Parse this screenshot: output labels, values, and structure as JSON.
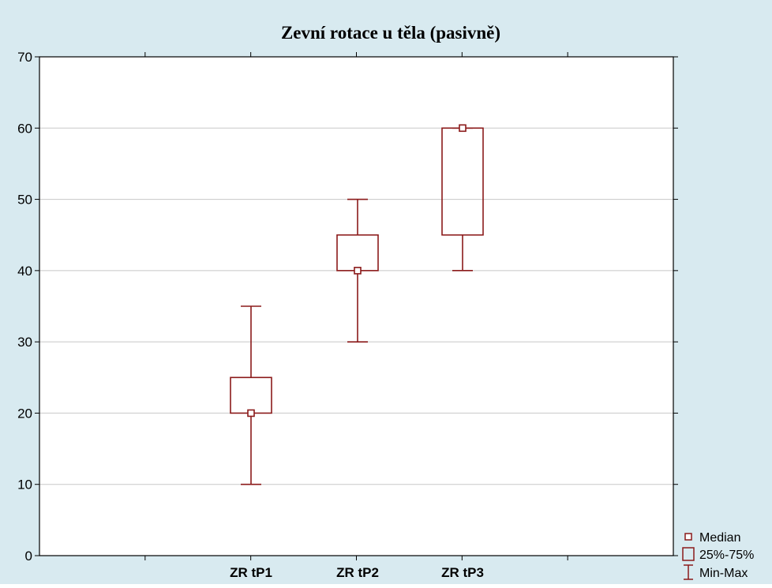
{
  "chart_data": {
    "type": "boxplot",
    "title": "Zevní rotace u těla (pasivně)",
    "xlabel": "",
    "ylabel": "",
    "ylim": [
      0,
      70
    ],
    "yticks": [
      0,
      10,
      20,
      30,
      40,
      50,
      60,
      70
    ],
    "grid": true,
    "categories": [
      "ZR tP1",
      "ZR tP2",
      "ZR tP3"
    ],
    "boxes": [
      {
        "category": "ZR tP1",
        "min": 10,
        "q1": 20,
        "median": 20,
        "q3": 25,
        "max": 35
      },
      {
        "category": "ZR tP2",
        "min": 30,
        "q1": 40,
        "median": 40,
        "q3": 45,
        "max": 50
      },
      {
        "category": "ZR tP3",
        "min": 40,
        "q1": 45,
        "median": 60,
        "q3": 60,
        "max": 60
      }
    ],
    "legend": {
      "position": "bottom-right",
      "entries": [
        {
          "label": "Median",
          "symbol": "small-square"
        },
        {
          "label": "25%-75%",
          "symbol": "box"
        },
        {
          "label": "Min-Max",
          "symbol": "whisker"
        }
      ]
    },
    "colors": {
      "series": "#8b1a1a",
      "background": "#d8eaf0",
      "plot": "#ffffff",
      "grid": "#c8c8c8"
    }
  }
}
